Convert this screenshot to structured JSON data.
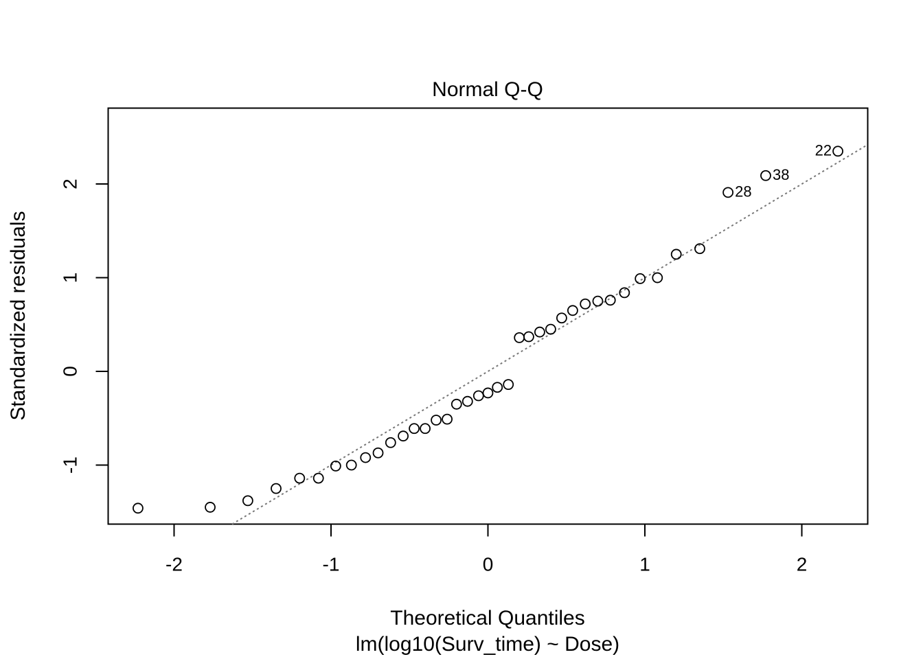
{
  "chart_data": {
    "type": "scatter",
    "title": "Normal Q-Q",
    "xlabel": "Theoretical Quantiles",
    "xlabel_sub": "lm(log10(Surv_time) ~ Dose)",
    "ylabel": "Standardized residuals",
    "xlim": [
      -2.42,
      2.42
    ],
    "ylim": [
      -1.63,
      2.81
    ],
    "x_ticks": [
      -2,
      -1,
      0,
      1,
      2
    ],
    "x_tick_labels": [
      "-2",
      "-1",
      "0",
      "1",
      "2"
    ],
    "y_ticks": [
      -1,
      0,
      1,
      2
    ],
    "y_tick_labels": [
      "-1",
      "0",
      "1",
      "2"
    ],
    "grid": false,
    "reference_line": {
      "style": "dotted",
      "color": "#777777",
      "intercept": 0.0,
      "slope": 1.0
    },
    "points": [
      {
        "x": -2.23,
        "y": -1.46
      },
      {
        "x": -1.77,
        "y": -1.45
      },
      {
        "x": -1.53,
        "y": -1.38
      },
      {
        "x": -1.35,
        "y": -1.25
      },
      {
        "x": -1.2,
        "y": -1.14
      },
      {
        "x": -1.08,
        "y": -1.14
      },
      {
        "x": -0.97,
        "y": -1.01
      },
      {
        "x": -0.87,
        "y": -1.0
      },
      {
        "x": -0.78,
        "y": -0.92
      },
      {
        "x": -0.7,
        "y": -0.87
      },
      {
        "x": -0.62,
        "y": -0.76
      },
      {
        "x": -0.54,
        "y": -0.69
      },
      {
        "x": -0.47,
        "y": -0.61
      },
      {
        "x": -0.4,
        "y": -0.61
      },
      {
        "x": -0.33,
        "y": -0.52
      },
      {
        "x": -0.26,
        "y": -0.51
      },
      {
        "x": -0.2,
        "y": -0.35
      },
      {
        "x": -0.13,
        "y": -0.32
      },
      {
        "x": -0.06,
        "y": -0.26
      },
      {
        "x": 0.0,
        "y": -0.23
      },
      {
        "x": 0.06,
        "y": -0.17
      },
      {
        "x": 0.13,
        "y": -0.14
      },
      {
        "x": 0.2,
        "y": 0.36
      },
      {
        "x": 0.26,
        "y": 0.37
      },
      {
        "x": 0.33,
        "y": 0.42
      },
      {
        "x": 0.4,
        "y": 0.45
      },
      {
        "x": 0.47,
        "y": 0.57
      },
      {
        "x": 0.54,
        "y": 0.65
      },
      {
        "x": 0.62,
        "y": 0.72
      },
      {
        "x": 0.7,
        "y": 0.75
      },
      {
        "x": 0.78,
        "y": 0.76
      },
      {
        "x": 0.87,
        "y": 0.84
      },
      {
        "x": 0.97,
        "y": 0.99
      },
      {
        "x": 1.08,
        "y": 1.0
      },
      {
        "x": 1.2,
        "y": 1.25
      },
      {
        "x": 1.35,
        "y": 1.31
      },
      {
        "x": 1.53,
        "y": 1.91,
        "label": "28"
      },
      {
        "x": 1.77,
        "y": 2.09,
        "label": "38"
      },
      {
        "x": 2.23,
        "y": 2.35,
        "label": "22"
      }
    ]
  }
}
